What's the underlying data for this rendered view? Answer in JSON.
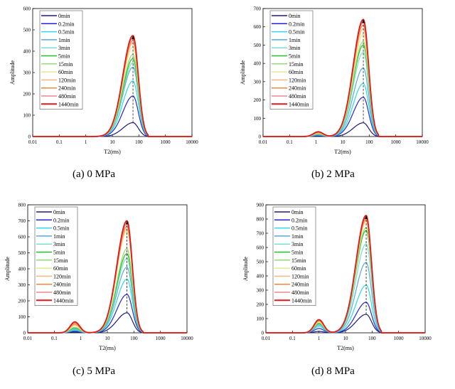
{
  "chart_data": [
    {
      "type": "line",
      "caption": "(a) 0 MPa",
      "xlabel": "T2(ms)",
      "ylabel": "Amplitude",
      "xscale": "log",
      "xlim": [
        0.01,
        10000
      ],
      "ylim": [
        0,
        600
      ],
      "yticks": [
        0,
        100,
        200,
        300,
        400,
        500,
        600
      ],
      "xticks": [
        "0.01",
        "0.1",
        "1",
        "10",
        "100",
        "1000",
        "10000"
      ],
      "legend": "top-left",
      "main_peak_T2": 60,
      "series": [
        {
          "name": "0min",
          "peak": 65,
          "minor": 0
        },
        {
          "name": "0.2min",
          "peak": 190,
          "minor": 0
        },
        {
          "name": "0.5min",
          "peak": 260,
          "minor": 0
        },
        {
          "name": "1min",
          "peak": 325,
          "minor": 0
        },
        {
          "name": "3min",
          "peak": 345,
          "minor": 0
        },
        {
          "name": "5min",
          "peak": 365,
          "minor": 0
        },
        {
          "name": "15min",
          "peak": 385,
          "minor": 0
        },
        {
          "name": "60min",
          "peak": 420,
          "minor": 0
        },
        {
          "name": "120min",
          "peak": 440,
          "minor": 0
        },
        {
          "name": "240min",
          "peak": 450,
          "minor": 0
        },
        {
          "name": "480min",
          "peak": 460,
          "minor": 0
        },
        {
          "name": "1440min",
          "peak": 473,
          "minor": 0
        }
      ],
      "minor_peak_T2": 1
    },
    {
      "type": "line",
      "caption": "(b) 2 MPa",
      "xlabel": "T2(ms)",
      "ylabel": "Amplitude",
      "xscale": "log",
      "xlim": [
        0.01,
        10000
      ],
      "ylim": [
        0,
        700
      ],
      "yticks": [
        0,
        100,
        200,
        300,
        400,
        500,
        600,
        700
      ],
      "xticks": [
        "0.01",
        "0.1",
        "1",
        "10",
        "100",
        "1000",
        "10000"
      ],
      "legend": "top-left",
      "main_peak_T2": 60,
      "series": [
        {
          "name": "0min",
          "peak": 75,
          "minor": 3
        },
        {
          "name": "0.2min",
          "peak": 215,
          "minor": 6
        },
        {
          "name": "0.5min",
          "peak": 290,
          "minor": 8
        },
        {
          "name": "1min",
          "peak": 375,
          "minor": 10
        },
        {
          "name": "3min",
          "peak": 460,
          "minor": 12
        },
        {
          "name": "5min",
          "peak": 500,
          "minor": 14
        },
        {
          "name": "15min",
          "peak": 520,
          "minor": 16
        },
        {
          "name": "60min",
          "peak": 560,
          "minor": 18
        },
        {
          "name": "120min",
          "peak": 590,
          "minor": 20
        },
        {
          "name": "240min",
          "peak": 610,
          "minor": 22
        },
        {
          "name": "480min",
          "peak": 625,
          "minor": 24
        },
        {
          "name": "1440min",
          "peak": 640,
          "minor": 26
        }
      ],
      "minor_peak_T2": 1.2
    },
    {
      "type": "line",
      "caption": "(c) 5 MPa",
      "xlabel": "T2(ms)",
      "ylabel": "Amplitude",
      "xscale": "log",
      "xlim": [
        0.01,
        10000
      ],
      "ylim": [
        0,
        800
      ],
      "yticks": [
        0,
        100,
        200,
        300,
        400,
        500,
        600,
        700,
        800
      ],
      "xticks": [
        "0.01",
        "0.1",
        "1",
        "10",
        "100",
        "1000",
        "10000"
      ],
      "legend": "top-left",
      "main_peak_T2": 55,
      "series": [
        {
          "name": "0min",
          "peak": 125,
          "minor": 5
        },
        {
          "name": "0.2min",
          "peak": 240,
          "minor": 10
        },
        {
          "name": "0.5min",
          "peak": 335,
          "minor": 15
        },
        {
          "name": "1min",
          "peak": 410,
          "minor": 20
        },
        {
          "name": "3min",
          "peak": 465,
          "minor": 25
        },
        {
          "name": "5min",
          "peak": 495,
          "minor": 30
        },
        {
          "name": "15min",
          "peak": 525,
          "minor": 35
        },
        {
          "name": "60min",
          "peak": 635,
          "minor": 45
        },
        {
          "name": "120min",
          "peak": 650,
          "minor": 50
        },
        {
          "name": "240min",
          "peak": 665,
          "minor": 55
        },
        {
          "name": "480min",
          "peak": 680,
          "minor": 60
        },
        {
          "name": "1440min",
          "peak": 700,
          "minor": 68
        }
      ],
      "minor_peak_T2": 0.6
    },
    {
      "type": "line",
      "caption": "(d) 8 MPa",
      "xlabel": "T2(ms)",
      "ylabel": "Amplitude",
      "xscale": "log",
      "xlim": [
        0.01,
        10000
      ],
      "ylim": [
        0,
        900
      ],
      "yticks": [
        0,
        100,
        200,
        300,
        400,
        500,
        600,
        700,
        800,
        900
      ],
      "xticks": [
        "0.01",
        "0.1",
        "1",
        "10",
        "100",
        "1000",
        "10000"
      ],
      "legend": "top-left",
      "main_peak_T2": 60,
      "series": [
        {
          "name": "0min",
          "peak": 130,
          "minor": 10
        },
        {
          "name": "0.2min",
          "peak": 215,
          "minor": 30
        },
        {
          "name": "0.5min",
          "peak": 335,
          "minor": 45
        },
        {
          "name": "1min",
          "peak": 495,
          "minor": 55
        },
        {
          "name": "3min",
          "peak": 625,
          "minor": 60
        },
        {
          "name": "5min",
          "peak": 720,
          "minor": 65
        },
        {
          "name": "15min",
          "peak": 740,
          "minor": 70
        },
        {
          "name": "60min",
          "peak": 780,
          "minor": 75
        },
        {
          "name": "120min",
          "peak": 790,
          "minor": 80
        },
        {
          "name": "240min",
          "peak": 800,
          "minor": 85
        },
        {
          "name": "480min",
          "peak": 810,
          "minor": 88
        },
        {
          "name": "1440min",
          "peak": 825,
          "minor": 92
        }
      ],
      "minor_peak_T2": 1
    }
  ],
  "colors": [
    "#1a1a80",
    "#2626d8",
    "#2ed8e8",
    "#5aa8e0",
    "#78e0cc",
    "#22c022",
    "#90e070",
    "#e8e890",
    "#f4b880",
    "#f08a3a",
    "#f08888",
    "#e01818"
  ]
}
